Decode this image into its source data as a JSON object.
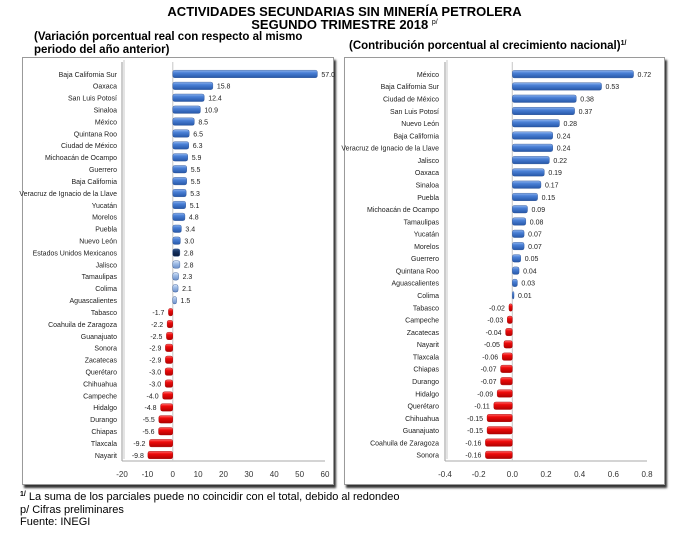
{
  "header": {
    "title": "ACTIVIDADES SECUNDARIAS SIN MINERÍA PETROLERA",
    "subtitle": "SEGUNDO TRIMESTRE 2018",
    "subtitle_mark": "p/"
  },
  "footer": {
    "note_mark": "1/",
    "note": " La suma de los parciales puede no coincidir con el total, debido al redondeo",
    "preliminary": "p/ Cifras preliminares",
    "source": "Fuente: INEGI"
  },
  "colors": {
    "positive": "#3a6fc4",
    "positive_light": "#8fb0e0",
    "national": "#0f2a52",
    "negative": "#dd0000"
  },
  "chart_data": [
    {
      "type": "bar",
      "orientation": "horizontal",
      "title": "(Variación porcentual real con respecto al mismo periodo del año anterior)",
      "title_lines": [
        "(Variación porcentual real con respecto al mismo",
        "periodo del año anterior)"
      ],
      "xlim": [
        -20,
        60
      ],
      "xticks": [
        -20,
        -10,
        0,
        10,
        20,
        30,
        40,
        50,
        60
      ],
      "xtick_labels": [
        "-20",
        "-10",
        "0",
        "10",
        "20",
        "30",
        "40",
        "50",
        "60"
      ],
      "grid": false,
      "categories": [
        "Baja California Sur",
        "Oaxaca",
        "San Luis Potosí",
        "Sinaloa",
        "México",
        "Quintana Roo",
        "Ciudad de México",
        "Michoacán de Ocampo",
        "Guerrero",
        "Baja California",
        "Veracruz de Ignacio de la Llave",
        "Yucatán",
        "Morelos",
        "Puebla",
        "Nuevo León",
        "Estados Unidos Mexicanos",
        "Jalisco",
        "Tamaulipas",
        "Colima",
        "Aguascalientes",
        "Tabasco",
        "Coahuila de Zaragoza",
        "Guanajuato",
        "Sonora",
        "Zacatecas",
        "Querétaro",
        "Chihuahua",
        "Campeche",
        "Hidalgo",
        "Durango",
        "Chiapas",
        "Tlaxcala",
        "Nayarit"
      ],
      "values": [
        57.0,
        15.8,
        12.4,
        10.9,
        8.5,
        6.5,
        6.3,
        5.9,
        5.5,
        5.5,
        5.3,
        5.1,
        4.8,
        3.4,
        3.0,
        2.8,
        2.8,
        2.3,
        2.1,
        1.5,
        -1.7,
        -2.2,
        -2.5,
        -2.9,
        -2.9,
        -3.0,
        -3.0,
        -4.0,
        -4.8,
        -5.5,
        -5.6,
        -9.2,
        -9.8
      ],
      "labels": [
        "57.0",
        "15.8",
        "12.4",
        "10.9",
        "8.5",
        "6.5",
        "6.3",
        "5.9",
        "5.5",
        "5.5",
        "5.3",
        "5.1",
        "4.8",
        "3.4",
        "3.0",
        "2.8",
        "2.8",
        "2.3",
        "2.1",
        "1.5",
        "-1.7",
        "-2.2",
        "-2.5",
        "-2.9",
        "-2.9",
        "-3.0",
        "-3.0",
        "-4.0",
        "-4.8",
        "-5.5",
        "-5.6",
        "-9.2",
        "-9.8"
      ],
      "bar_colors": [
        "positive",
        "positive",
        "positive",
        "positive",
        "positive",
        "positive",
        "positive",
        "positive",
        "positive",
        "positive",
        "positive",
        "positive",
        "positive",
        "positive",
        "positive",
        "national",
        "positive_light",
        "positive_light",
        "positive_light",
        "positive_light",
        "negative",
        "negative",
        "negative",
        "negative",
        "negative",
        "negative",
        "negative",
        "negative",
        "negative",
        "negative",
        "negative",
        "negative",
        "negative"
      ]
    },
    {
      "type": "bar",
      "orientation": "horizontal",
      "title": "(Contribución porcentual al crecimiento nacional)",
      "title_mark": "1/",
      "xlim": [
        -0.4,
        0.8
      ],
      "xticks": [
        -0.4,
        -0.2,
        0.0,
        0.2,
        0.4,
        0.6,
        0.8
      ],
      "xtick_labels": [
        "-0.4",
        "-0.2",
        "0.0",
        "0.2",
        "0.4",
        "0.6",
        "0.8"
      ],
      "grid": false,
      "categories": [
        "México",
        "Baja California Sur",
        "Ciudad de México",
        "San Luis Potosí",
        "Nuevo León",
        "Baja California",
        "Veracruz de Ignacio de la Llave",
        "Jalisco",
        "Oaxaca",
        "Sinaloa",
        "Puebla",
        "Michoacán de Ocampo",
        "Tamaulipas",
        "Yucatán",
        "Morelos",
        "Guerrero",
        "Quintana Roo",
        "Aguascalientes",
        "Colima",
        "Tabasco",
        "Campeche",
        "Zacatecas",
        "Nayarit",
        "Tlaxcala",
        "Chiapas",
        "Durango",
        "Hidalgo",
        "Querétaro",
        "Chihuahua",
        "Guanajuato",
        "Coahuila de Zaragoza",
        "Sonora"
      ],
      "values": [
        0.72,
        0.53,
        0.38,
        0.37,
        0.28,
        0.24,
        0.24,
        0.22,
        0.19,
        0.17,
        0.15,
        0.09,
        0.08,
        0.07,
        0.07,
        0.05,
        0.04,
        0.03,
        0.01,
        -0.02,
        -0.03,
        -0.04,
        -0.05,
        -0.06,
        -0.07,
        -0.07,
        -0.09,
        -0.11,
        -0.15,
        -0.15,
        -0.16,
        -0.16
      ],
      "labels": [
        "0.72",
        "0.53",
        "0.38",
        "0.37",
        "0.28",
        "0.24",
        "0.24",
        "0.22",
        "0.19",
        "0.17",
        "0.15",
        "0.09",
        "0.08",
        "0.07",
        "0.07",
        "0.05",
        "0.04",
        "0.03",
        "0.01",
        "-0.02",
        "-0.03",
        "-0.04",
        "-0.05",
        "-0.06",
        "-0.07",
        "-0.07",
        "-0.09",
        "-0.11",
        "-0.15",
        "-0.15",
        "-0.16",
        "-0.16"
      ]
    }
  ]
}
